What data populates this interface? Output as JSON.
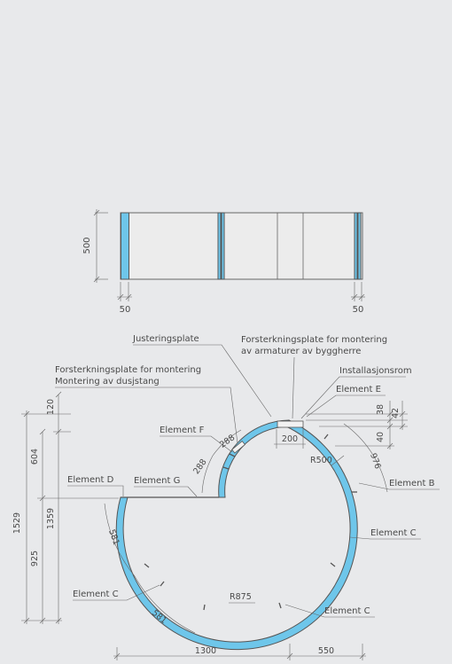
{
  "elevation": {
    "height_dim": "500",
    "left_dim": "50",
    "right_dim": "50"
  },
  "plan": {
    "labels": {
      "justeringsplate": "Justeringsplate",
      "forsterkning_armatur_1": "Forsterkningsplate for montering",
      "forsterkning_armatur_2": "av armaturer av byggherre",
      "installasjonsrom": "Installasjonsrom",
      "forsterkning_dusj_1": "Forsterkningsplate for montering",
      "forsterkning_dusj_2": "Montering av dusjstang",
      "element_e": "Element E",
      "element_f": "Element F",
      "element_d": "Element D",
      "element_g": "Element G",
      "element_b": "Element B",
      "element_c_right": "Element C",
      "element_c_left": "Element C",
      "element_c_bottom": "Element C"
    },
    "dims": {
      "d120": "120",
      "d604": "604",
      "d1529": "1529",
      "d1359": "1359",
      "d925": "925",
      "d38": "38",
      "d42": "42",
      "d40": "40",
      "d200": "200",
      "r500": "R500",
      "d976": "976",
      "d288a": "288",
      "d288b": "288",
      "d581a": "581",
      "d581b": "581",
      "r875": "R875",
      "d1300": "1300",
      "d550": "550"
    }
  }
}
